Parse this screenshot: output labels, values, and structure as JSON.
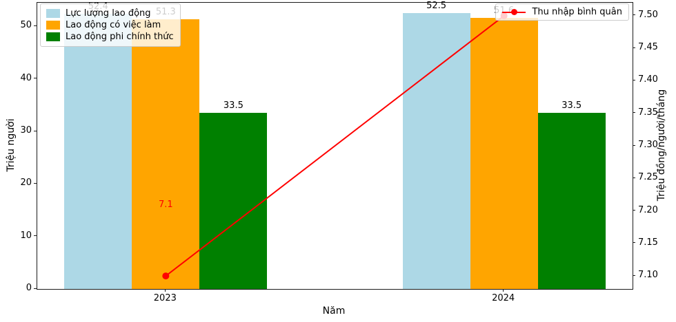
{
  "chart_data": {
    "type": "bar",
    "categories": [
      "2023",
      "2024"
    ],
    "series": [
      {
        "name": "Lực lượng lao động",
        "color": "#add8e6",
        "values": [
          52.4,
          52.5
        ]
      },
      {
        "name": "Lao động có việc làm",
        "color": "#ffa500",
        "values": [
          51.3,
          51.6
        ]
      },
      {
        "name": "Lao động phi chính thức",
        "color": "#008000",
        "values": [
          33.5,
          33.5
        ]
      }
    ],
    "line": {
      "name": "Thu nhập bình quân",
      "color": "#ff0000",
      "values": [
        7.1,
        7.5
      ],
      "axis": "right",
      "annotation": "7.1"
    },
    "title": "",
    "xlabel": "Năm",
    "ylabel_left": "Triệu người",
    "ylabel_right": "Triệu đồng/người/tháng",
    "yticks_left": [
      "0",
      "10",
      "20",
      "30",
      "40",
      "50"
    ],
    "yticks_right": [
      "7.10",
      "7.15",
      "7.20",
      "7.25",
      "7.30",
      "7.35",
      "7.40",
      "7.45",
      "7.50"
    ],
    "ylim_left": [
      0,
      54.5
    ],
    "ylim_right": [
      7.08,
      7.52
    ],
    "xlim": [
      -0.38,
      1.38
    ],
    "bar_width": 0.2,
    "grid": false,
    "legend_positions": {
      "bars": "upper left",
      "line": "upper right"
    }
  }
}
